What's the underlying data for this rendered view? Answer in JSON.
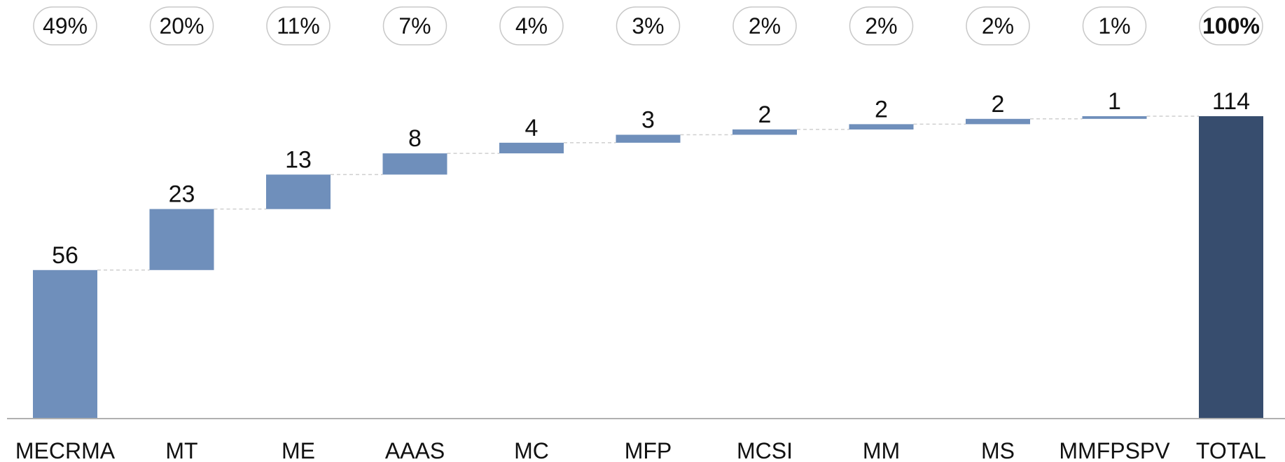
{
  "chart_data": {
    "type": "waterfall",
    "title": "",
    "xlabel": "",
    "ylabel": "",
    "ylim": [
      0,
      114
    ],
    "grid": false,
    "categories": [
      "MECRMA",
      "MT",
      "ME",
      "AAAS",
      "MC",
      "MFP",
      "MCSI",
      "MM",
      "MS",
      "MMFPSPV",
      "TOTAL"
    ],
    "values": [
      56,
      23,
      13,
      8,
      4,
      3,
      2,
      2,
      2,
      1,
      114
    ],
    "value_labels": [
      "56",
      "23",
      "13",
      "8",
      "4",
      "3",
      "2",
      "2",
      "2",
      "1",
      "114"
    ],
    "percent_labels": [
      "49%",
      "20%",
      "11%",
      "7%",
      "4%",
      "3%",
      "2%",
      "2%",
      "2%",
      "1%",
      "100%"
    ],
    "total_index": 10,
    "colors": {
      "increment": "#6f8fbb",
      "total": "#374d6e"
    }
  }
}
